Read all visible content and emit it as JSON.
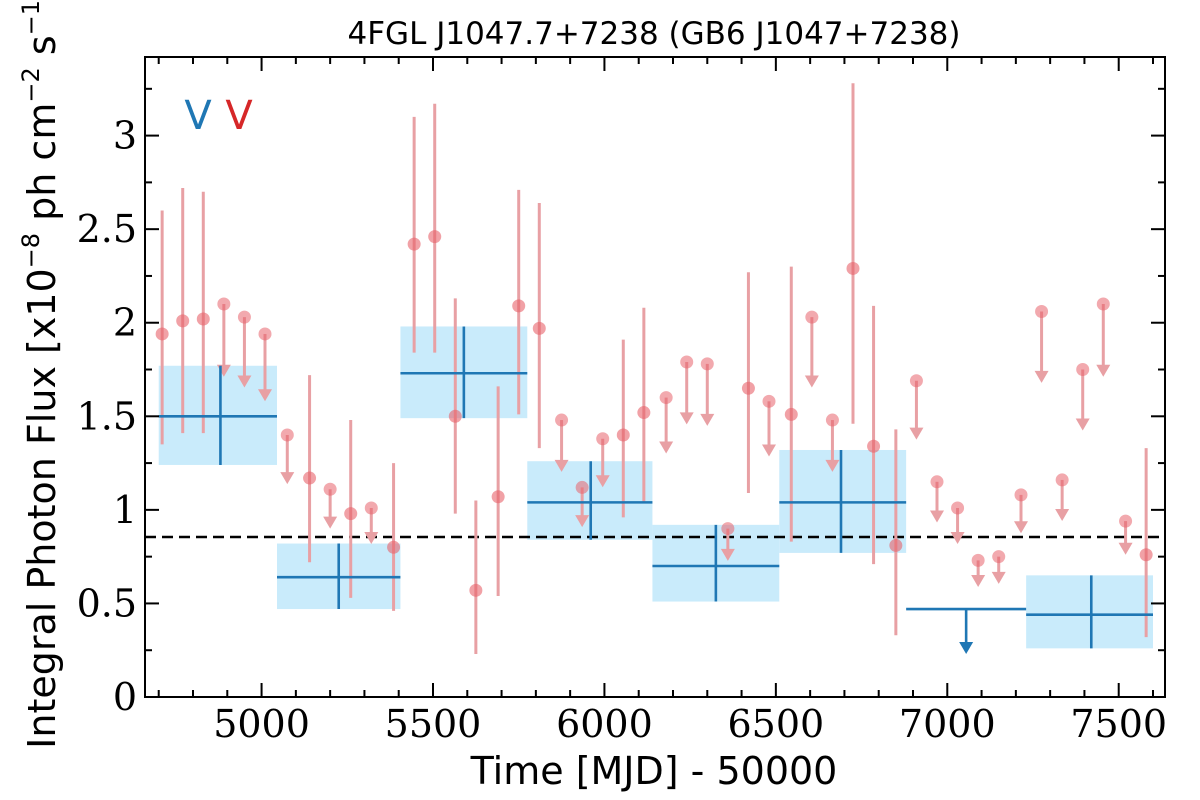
{
  "chart_data": {
    "type": "scatter",
    "title": "4FGL J1047.7+7238 (GB6 J1047+7238)",
    "xlabel": "Time [MJD] - 50000",
    "ylabel": "Integral Photon Flux [x10",
    "ylabel_exp1": "−8",
    "ylabel_mid": " ph cm",
    "ylabel_exp2": "−2",
    "ylabel_mid2": " s",
    "ylabel_exp3": "−1",
    "ylabel_end": "]",
    "xlim": [
      4660,
      7635
    ],
    "ylim": [
      0,
      3.42
    ],
    "x_ticks": [
      5000,
      5500,
      6000,
      6500,
      7000,
      7500
    ],
    "x_tick_labels": [
      "5000",
      "5500",
      "6000",
      "6500",
      "7000",
      "7500"
    ],
    "y_ticks": [
      0,
      0.5,
      1,
      1.5,
      2,
      2.5,
      3
    ],
    "y_tick_labels": [
      "0",
      "0.5",
      "1",
      "1.5",
      "2",
      "2.5",
      "3"
    ],
    "legend": {
      "placement": "top-left",
      "entries": [
        {
          "symbol": "V",
          "color": "#1f77b4"
        },
        {
          "symbol": "V",
          "color": "#d62728"
        }
      ]
    },
    "reference_line": {
      "y": 0.855,
      "style": "dashed",
      "color": "#000000"
    },
    "colors": {
      "short_bin_marker": "#e8636b",
      "short_bin_error": "#e8a0a4",
      "long_bin_line": "#1f77b4",
      "long_bin_box": "#c9ebfb"
    },
    "long_bins": [
      {
        "x": 4880,
        "x_lo": 4700,
        "x_hi": 5045,
        "y": 1.5,
        "y_lo": 1.24,
        "y_hi": 1.77,
        "upper_limit": false
      },
      {
        "x": 5225,
        "x_lo": 5045,
        "x_hi": 5405,
        "y": 0.64,
        "y_lo": 0.47,
        "y_hi": 0.82,
        "upper_limit": false
      },
      {
        "x": 5590,
        "x_lo": 5405,
        "x_hi": 5775,
        "y": 1.73,
        "y_lo": 1.49,
        "y_hi": 1.98,
        "upper_limit": false
      },
      {
        "x": 5960,
        "x_lo": 5775,
        "x_hi": 6140,
        "y": 1.04,
        "y_lo": 0.84,
        "y_hi": 1.26,
        "upper_limit": false
      },
      {
        "x": 6325,
        "x_lo": 6140,
        "x_hi": 6510,
        "y": 0.7,
        "y_lo": 0.51,
        "y_hi": 0.92,
        "upper_limit": false
      },
      {
        "x": 6690,
        "x_lo": 6510,
        "x_hi": 6880,
        "y": 1.04,
        "y_lo": 0.77,
        "y_hi": 1.32,
        "upper_limit": false
      },
      {
        "x": 7055,
        "x_lo": 6880,
        "x_hi": 7230,
        "y": 0.47,
        "upper_limit": true
      },
      {
        "x": 7420,
        "x_lo": 7230,
        "x_hi": 7600,
        "y": 0.44,
        "y_lo": 0.26,
        "y_hi": 0.65,
        "upper_limit": false
      }
    ],
    "short_bins": [
      {
        "x": 4710,
        "y": 1.94,
        "y_lo": 1.35,
        "y_hi": 2.6,
        "upper_limit": false
      },
      {
        "x": 4770,
        "y": 2.01,
        "y_lo": 1.41,
        "y_hi": 2.72,
        "upper_limit": false
      },
      {
        "x": 4830,
        "y": 2.02,
        "y_lo": 1.41,
        "y_hi": 2.7,
        "upper_limit": false
      },
      {
        "x": 4890,
        "y": 2.1,
        "upper_limit": true
      },
      {
        "x": 4950,
        "y": 2.03,
        "upper_limit": true
      },
      {
        "x": 5010,
        "y": 1.94,
        "upper_limit": true
      },
      {
        "x": 5075,
        "y": 1.4,
        "upper_limit": true
      },
      {
        "x": 5140,
        "y": 1.17,
        "y_lo": 0.72,
        "y_hi": 1.72,
        "upper_limit": false
      },
      {
        "x": 5200,
        "y": 1.11,
        "upper_limit": true
      },
      {
        "x": 5260,
        "y": 0.98,
        "y_lo": 0.53,
        "y_hi": 1.48,
        "upper_limit": false
      },
      {
        "x": 5320,
        "y": 1.01,
        "upper_limit": true
      },
      {
        "x": 5385,
        "y": 0.8,
        "y_lo": 0.46,
        "y_hi": 1.25,
        "upper_limit": false
      },
      {
        "x": 5445,
        "y": 2.42,
        "y_lo": 1.84,
        "y_hi": 3.1,
        "upper_limit": false
      },
      {
        "x": 5505,
        "y": 2.46,
        "y_lo": 1.84,
        "y_hi": 3.17,
        "upper_limit": false
      },
      {
        "x": 5565,
        "y": 1.5,
        "y_lo": 0.98,
        "y_hi": 2.13,
        "upper_limit": false
      },
      {
        "x": 5625,
        "y": 0.57,
        "y_lo": 0.23,
        "y_hi": 1.05,
        "upper_limit": false
      },
      {
        "x": 5690,
        "y": 1.07,
        "y_lo": 0.54,
        "y_hi": 1.66,
        "upper_limit": false
      },
      {
        "x": 5750,
        "y": 2.09,
        "y_lo": 1.51,
        "y_hi": 2.71,
        "upper_limit": false
      },
      {
        "x": 5810,
        "y": 1.97,
        "y_lo": 1.33,
        "y_hi": 2.64,
        "upper_limit": false
      },
      {
        "x": 5875,
        "y": 1.48,
        "upper_limit": true
      },
      {
        "x": 5935,
        "y": 1.12,
        "upper_limit": true
      },
      {
        "x": 5995,
        "y": 1.38,
        "upper_limit": true
      },
      {
        "x": 6055,
        "y": 1.4,
        "y_lo": 0.96,
        "y_hi": 1.91,
        "upper_limit": false
      },
      {
        "x": 6115,
        "y": 1.52,
        "y_lo": 1.04,
        "y_hi": 2.08,
        "upper_limit": false
      },
      {
        "x": 6180,
        "y": 1.6,
        "upper_limit": true
      },
      {
        "x": 6240,
        "y": 1.79,
        "upper_limit": true
      },
      {
        "x": 6300,
        "y": 1.78,
        "upper_limit": true
      },
      {
        "x": 6360,
        "y": 0.9,
        "upper_limit": true
      },
      {
        "x": 6420,
        "y": 1.65,
        "y_lo": 1.09,
        "y_hi": 2.27,
        "upper_limit": false
      },
      {
        "x": 6480,
        "y": 1.58,
        "upper_limit": true
      },
      {
        "x": 6545,
        "y": 1.51,
        "y_lo": 0.83,
        "y_hi": 2.3,
        "upper_limit": false
      },
      {
        "x": 6605,
        "y": 2.03,
        "upper_limit": true
      },
      {
        "x": 6665,
        "y": 1.48,
        "upper_limit": true
      },
      {
        "x": 6725,
        "y": 2.29,
        "y_lo": 1.46,
        "y_hi": 3.28,
        "upper_limit": false
      },
      {
        "x": 6785,
        "y": 1.34,
        "y_lo": 0.71,
        "y_hi": 2.09,
        "upper_limit": false
      },
      {
        "x": 6850,
        "y": 0.81,
        "y_lo": 0.33,
        "y_hi": 1.43,
        "upper_limit": false
      },
      {
        "x": 6910,
        "y": 1.69,
        "upper_limit": true
      },
      {
        "x": 6970,
        "y": 1.15,
        "upper_limit": true
      },
      {
        "x": 7030,
        "y": 1.01,
        "upper_limit": true
      },
      {
        "x": 7090,
        "y": 0.73,
        "upper_limit": true
      },
      {
        "x": 7150,
        "y": 0.75,
        "upper_limit": true
      },
      {
        "x": 7215,
        "y": 1.08,
        "upper_limit": true
      },
      {
        "x": 7275,
        "y": 2.06,
        "upper_limit": true
      },
      {
        "x": 7335,
        "y": 1.16,
        "upper_limit": true
      },
      {
        "x": 7395,
        "y": 1.75,
        "upper_limit": true
      },
      {
        "x": 7455,
        "y": 2.1,
        "upper_limit": true
      },
      {
        "x": 7520,
        "y": 0.94,
        "upper_limit": true
      },
      {
        "x": 7580,
        "y": 0.76,
        "y_lo": 0.32,
        "y_hi": 1.33,
        "upper_limit": false
      }
    ]
  }
}
